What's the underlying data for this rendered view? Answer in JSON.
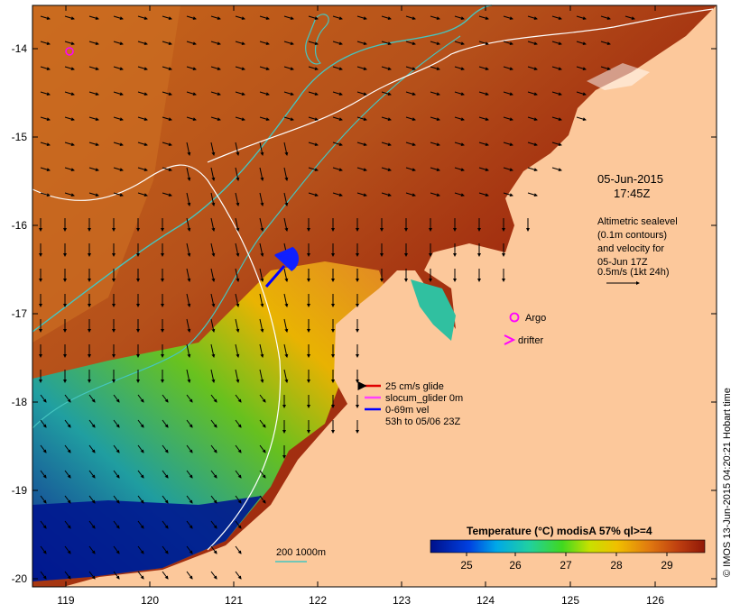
{
  "map": {
    "date_label": "05-Jun-2015",
    "time_label": "17:45Z",
    "altimetry_lines": [
      "Altimetric sealevel",
      "(0.1m contours)",
      "and velocity for",
      "05-Jun 17Z",
      "0.5m/s (1kt 24h)"
    ],
    "argo_label": "Argo",
    "drifter_label": "drifter",
    "glider_legend": [
      {
        "text": "25 cm/s glide",
        "color": "#e00000"
      },
      {
        "text": "slocum_glider 0m",
        "color": "#ff40ff"
      },
      {
        "text": "0-69m vel",
        "color": "#0000ff"
      },
      {
        "text": "53h to 05/06 23Z",
        "color": ""
      }
    ],
    "depth_legend": "200  1000m",
    "colorbar_title": "Temperature (°C) modisA 57% ql>=4",
    "colorbar_ticks": [
      "25",
      "26",
      "27",
      "28",
      "29"
    ],
    "x_ticks": [
      "119",
      "120",
      "121",
      "122",
      "123",
      "124",
      "125",
      "126"
    ],
    "y_ticks": [
      "-14",
      "-15",
      "-16",
      "-17",
      "-18",
      "-19",
      "-20"
    ],
    "credit": "© IMOS 13-Jun-2015 04:20:21 Hobart time",
    "colors": {
      "land": "#fcc89b",
      "warm": "#b84a10",
      "hot": "#a01a0a",
      "cold": "#00138a",
      "contour_cyan": "#45c6c0",
      "argo": "#ff00ff"
    },
    "icons": [
      "velocity-arrow",
      "argo-circle-icon",
      "drifter-chevron-icon",
      "glider-arrow-icon"
    ]
  }
}
